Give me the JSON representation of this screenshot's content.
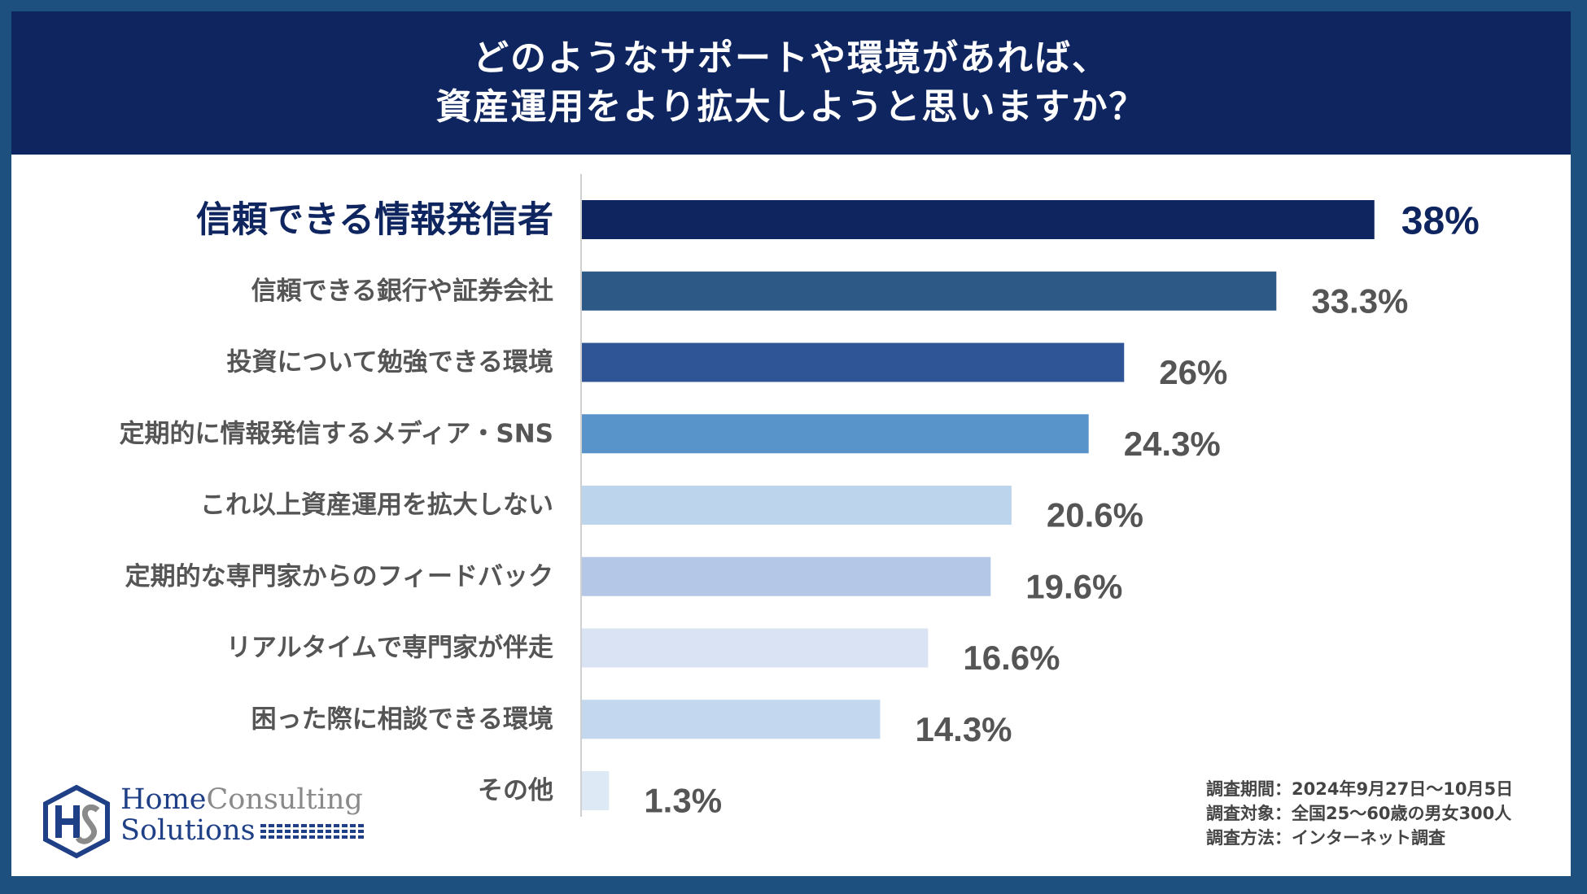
{
  "title": {
    "line1": "どのようなサポートや環境があれば、",
    "line2": "資産運用をより拡大しようと思いますか？"
  },
  "chart_data": {
    "type": "bar",
    "orientation": "horizontal",
    "categories": [
      "信頼できる情報発信者",
      "信頼できる銀行や証券会社",
      "投資について勉強できる環境",
      "定期的に情報発信するメディア・SNS",
      "これ以上資産運用を拡大しない",
      "定期的な専門家からのフィードバック",
      "リアルタイムで専門家が伴走",
      "困った際に相談できる環境",
      "その他"
    ],
    "values": [
      38,
      33.3,
      26,
      24.3,
      20.6,
      19.6,
      16.6,
      14.3,
      1.3
    ],
    "value_labels": [
      "38%",
      "33.3%",
      "26%",
      "24.3%",
      "20.6%",
      "19.6%",
      "16.6%",
      "14.3%",
      "1.3%"
    ],
    "bar_colors": [
      "#0f2560",
      "#2d5986",
      "#2f5597",
      "#5894c9",
      "#bdd5ec",
      "#b4c7e7",
      "#dae3f3",
      "#c3d8ee",
      "#ddeaf6"
    ],
    "highlight_color": "#0f2560",
    "label_color": "#555555",
    "unit": "%",
    "xlim": [
      0,
      40
    ],
    "grid": false,
    "legend": "none"
  },
  "footnotes": {
    "period": "調査期間：2024年9月27日～10月5日",
    "target": "調査対象：全国25～60歳の男女300人",
    "method": "調査方法：インターネット調査"
  },
  "logo": {
    "home": "Home",
    "consulting": "Consulting",
    "solutions": "Solutions",
    "monogram": "HS"
  }
}
